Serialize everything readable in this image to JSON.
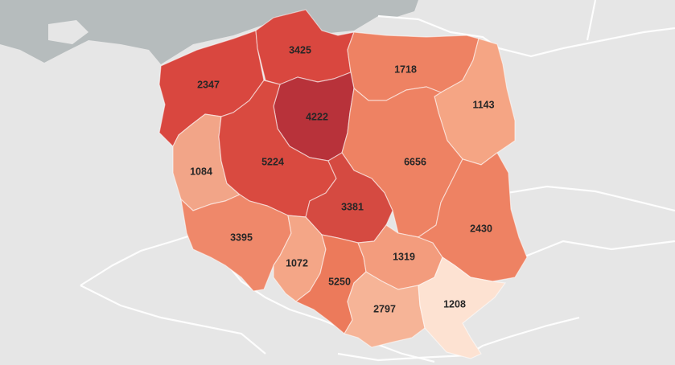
{
  "map": {
    "regions": [
      {
        "id": "zachodniopomorskie",
        "value": "2347",
        "color": "#d9473f"
      },
      {
        "id": "pomorskie",
        "value": "3425",
        "color": "#d9473f"
      },
      {
        "id": "warminsko-mazurskie",
        "value": "1718",
        "color": "#ee8263"
      },
      {
        "id": "podlaskie",
        "value": "1143",
        "color": "#f5a584"
      },
      {
        "id": "kujawsko-pomorskie",
        "value": "4222",
        "color": "#b8323a"
      },
      {
        "id": "lubuskie",
        "value": "1084",
        "color": "#f2a588"
      },
      {
        "id": "wielkopolskie",
        "value": "5224",
        "color": "#d94a40"
      },
      {
        "id": "mazowieckie",
        "value": "6656",
        "color": "#ee8263"
      },
      {
        "id": "lodzkie",
        "value": "3381",
        "color": "#d54a41"
      },
      {
        "id": "dolnoslaskie",
        "value": "3395",
        "color": "#ef886a"
      },
      {
        "id": "opolskie",
        "value": "1072",
        "color": "#f4a687"
      },
      {
        "id": "slaskie",
        "value": "5250",
        "color": "#ec7a5b"
      },
      {
        "id": "swietokrzyskie",
        "value": "1319",
        "color": "#f39c7d"
      },
      {
        "id": "lubelskie",
        "value": "2430",
        "color": "#ee8263"
      },
      {
        "id": "malopolskie",
        "value": "2797",
        "color": "#f6b497"
      },
      {
        "id": "podkarpackie",
        "value": "1208",
        "color": "#fde2d2"
      }
    ],
    "background": {
      "land": "#e6e6e6",
      "sea": "#b6bcbd",
      "borders": "#ffffff"
    }
  }
}
